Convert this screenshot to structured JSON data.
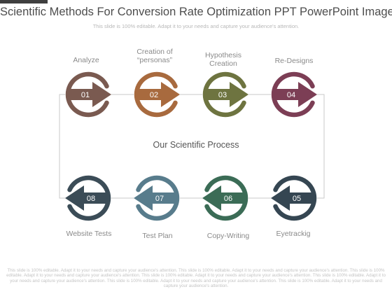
{
  "title": "Scientific Methods For Conversion Rate Optimization PPT PowerPoint Image",
  "subtitle": "This slide is 100% editable. Adapt it to your needs and capture your audience's attention.",
  "center_label": "Our Scientific Process",
  "steps": [
    {
      "number": "01",
      "label": "Analyze",
      "color": "#7a5a50",
      "direction": "right"
    },
    {
      "number": "02",
      "label": "Creation of\n“personas”",
      "color": "#a86a3e",
      "direction": "right"
    },
    {
      "number": "03",
      "label": "Hypothesis\nCreation",
      "color": "#6e7440",
      "direction": "right"
    },
    {
      "number": "04",
      "label": "Re-Designs",
      "color": "#7c3e55",
      "direction": "right"
    },
    {
      "number": "05",
      "label": "Eyetrackig",
      "color": "#354652",
      "direction": "left"
    },
    {
      "number": "06",
      "label": "Copy-Writing",
      "color": "#3b6c56",
      "direction": "left"
    },
    {
      "number": "07",
      "label": "Test Plan",
      "color": "#587c8c",
      "direction": "left"
    },
    {
      "number": "08",
      "label": "Website Tests",
      "color": "#3b4c57",
      "direction": "left"
    }
  ],
  "footer": "This slide is 100% editable. Adapt it to your needs and capture your audience's attention. This slide is 100% editable. Adapt it to your needs and capture your audience's attention. This slide is 100% editable. Adapt it to your needs and capture your audience's attention. This slide is 100% editable. Adapt it to your needs and capture your audience's attention. This slide is 100% editable. Adapt it to your needs and capture your audience's attention. This slide is 100% editable. Adapt it to your needs and capture your audience's attention. This slide is 100% editable. Adapt it to your needs and capture your audience's attention."
}
